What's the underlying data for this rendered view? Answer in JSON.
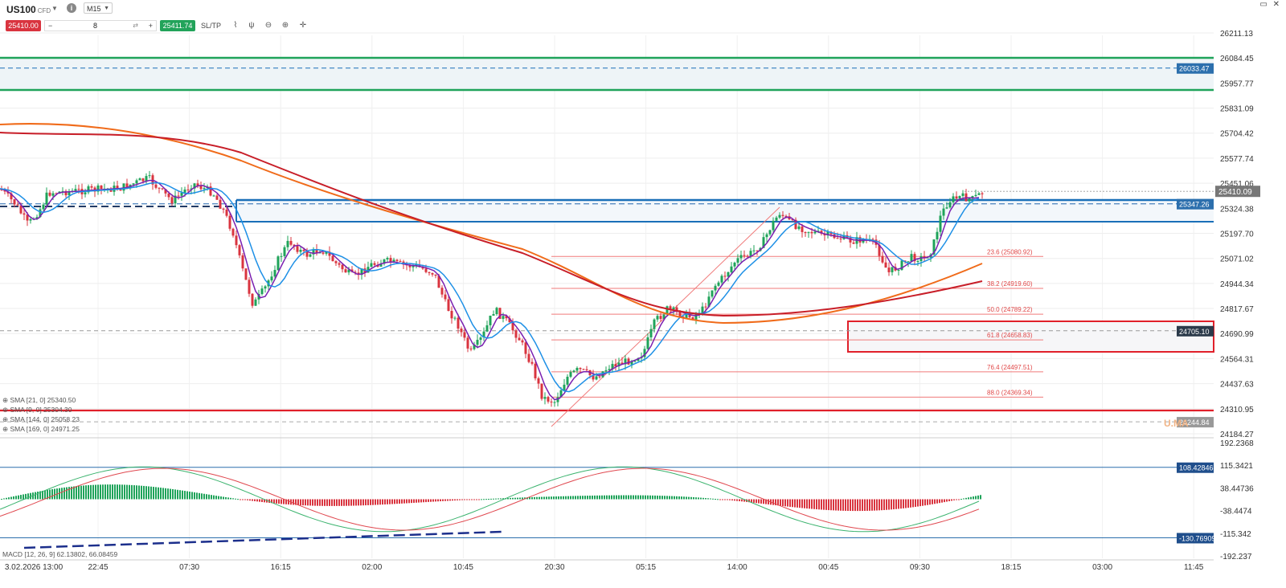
{
  "header": {
    "symbol": "US100",
    "symbol_type": "CFD",
    "timeframe": "M15",
    "sell_price": "25410.00",
    "buy_price": "25411.74",
    "quantity": "8",
    "sltp_label": "SL/TP",
    "window_icons": "▭ ✕"
  },
  "icons": {
    "info": "i",
    "minus": "−",
    "plus": "+",
    "reset": "⇄",
    "line_tool": "⌇",
    "candle_tool": "ψ",
    "zoom_out": "⊖",
    "zoom_in": "⊕",
    "crosshair": "✛"
  },
  "price_axis": [
    "26211.13",
    "26084.45",
    "25957.77",
    "25831.09",
    "25704.42",
    "25577.74",
    "25451.06",
    "25324.38",
    "25197.70",
    "25071.02",
    "24944.34",
    "24817.67",
    "24690.99",
    "24564.31",
    "24437.63",
    "24310.95",
    "24184.27"
  ],
  "price_tags": {
    "resistance_mid": "26033.47",
    "current": "25410.09",
    "box_mid": "25347.26",
    "support_mid": "24705.10",
    "bottom_dashed": "24244.84"
  },
  "fib_levels": [
    {
      "label": "23.6 (25080.92)",
      "price": 25080.92
    },
    {
      "label": "38.2 (24919.60)",
      "price": 24919.6
    },
    {
      "label": "50.0 (24789.22)",
      "price": 24789.22
    },
    {
      "label": "61.8 (24658.83)",
      "price": 24658.83
    },
    {
      "label": "76.4 (24497.51)",
      "price": 24497.51
    },
    {
      "label": "88.0 (24369.34)",
      "price": 24369.34
    }
  ],
  "legend": [
    "SMA [21, 0] 25340.50",
    "SMA [9, 0] 25304.30",
    "SMA [144, 0] 25058.23",
    "SMA [169, 0] 24971.25"
  ],
  "macd": {
    "label": "MACD [12, 26, 9] 62.13802, 66.08459",
    "axis": [
      "192.2368",
      "115.3421",
      "38.44736",
      "-38.4474",
      "-115.342",
      "-192.237"
    ],
    "tag_top": "108.42846",
    "tag_bottom": "-130.76909"
  },
  "time_axis": [
    "3.02.2026 13:00",
    "22:45",
    "07:30",
    "16:15",
    "02:00",
    "10:45",
    "20:30",
    "05:15",
    "14:00",
    "00:45",
    "09:30",
    "18:15",
    "03:00",
    "11:45"
  ],
  "colors": {
    "bull": "#1fa35a",
    "bear": "#d9343f",
    "sma21": "#1e90e6",
    "sma9": "#7a1fb0",
    "sma144": "#f06b1a",
    "sma169": "#c81e28",
    "zone_green": "#1fa35a",
    "zone_blue": "#1a6fb8",
    "support_red": "#e0202a",
    "tag_blue": "#2c6fad",
    "tag_dark": "#2b3a4a"
  },
  "watermark": "U.MA"
}
